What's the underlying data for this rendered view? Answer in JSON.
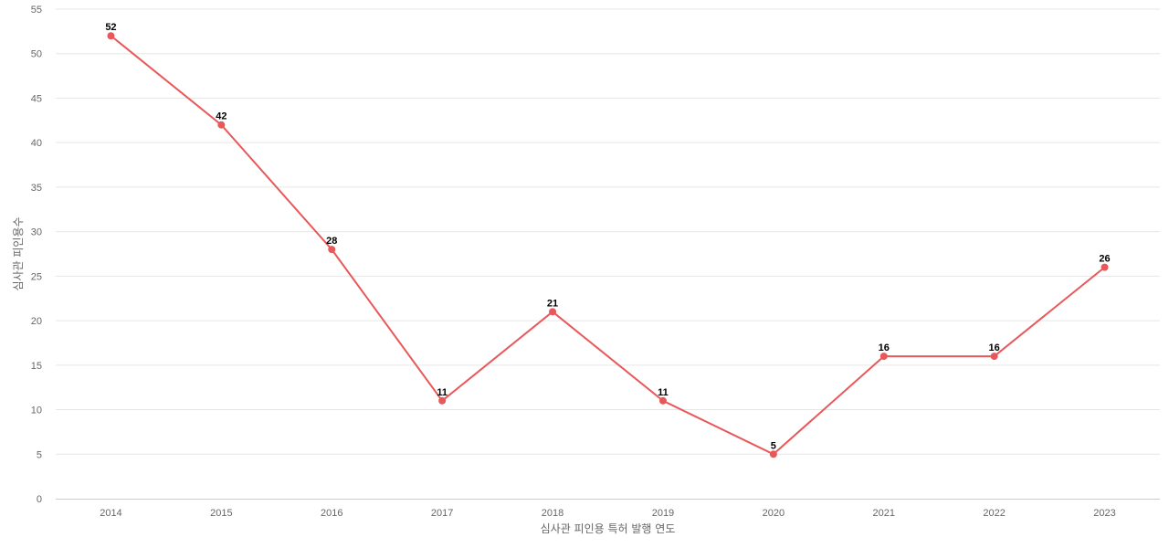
{
  "chart_data": {
    "type": "line",
    "title": "",
    "xlabel": "심사관 피인용 특허 발행 연도",
    "ylabel": "심사관 피인용수",
    "categories": [
      "2014",
      "2015",
      "2016",
      "2017",
      "2018",
      "2019",
      "2020",
      "2021",
      "2022",
      "2023"
    ],
    "series": [
      {
        "values": [
          52,
          42,
          28,
          11,
          21,
          11,
          5,
          16,
          16,
          26
        ],
        "color": "#e8585a"
      }
    ],
    "ylim": [
      0,
      55
    ],
    "yticks": [
      0,
      5,
      10,
      15,
      20,
      25,
      30,
      35,
      40,
      45,
      50,
      55
    ],
    "grid": true,
    "data_labels": true
  }
}
